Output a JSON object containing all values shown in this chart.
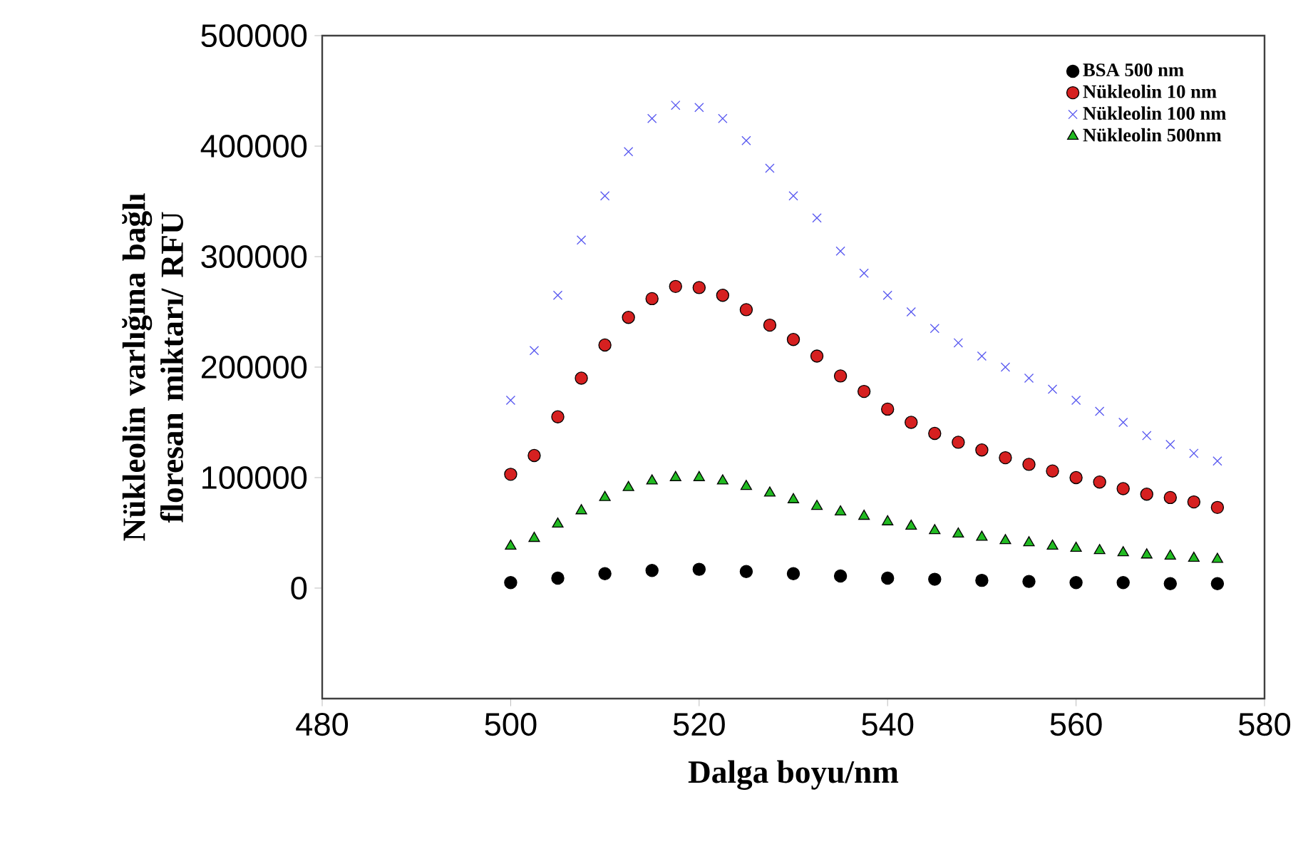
{
  "chart_data": {
    "type": "scatter",
    "xlabel": "Dalga boyu/nm",
    "ylabel": "Nükleolin varlığına bağlı floresan miktarı/ RFU",
    "x": [
      500,
      502.5,
      505,
      507.5,
      510,
      512.5,
      515,
      517.5,
      520,
      522.5,
      525,
      527.5,
      530,
      532.5,
      535,
      537.5,
      540,
      542.5,
      545,
      547.5,
      550,
      552.5,
      555,
      557.5,
      560,
      562.5,
      565,
      567.5,
      570,
      572.5,
      575
    ],
    "series": [
      {
        "name": "BSA 500 nm",
        "color": "#000000",
        "marker": "circle",
        "x": [
          500,
          505,
          510,
          515,
          520,
          525,
          530,
          535,
          540,
          545,
          550,
          555,
          560,
          565,
          570,
          575
        ],
        "values": [
          5000,
          9000,
          13000,
          16000,
          17000,
          15000,
          13000,
          11000,
          9000,
          8000,
          7000,
          6000,
          5000,
          5000,
          4000,
          4000
        ]
      },
      {
        "name": "Nükleolin 10 nm",
        "color": "#d62020",
        "marker": "circle",
        "values": [
          103000,
          120000,
          155000,
          190000,
          220000,
          245000,
          262000,
          273000,
          272000,
          265000,
          252000,
          238000,
          225000,
          210000,
          192000,
          178000,
          162000,
          150000,
          140000,
          132000,
          125000,
          118000,
          112000,
          106000,
          100000,
          96000,
          90000,
          85000,
          82000,
          78000,
          73000
        ]
      },
      {
        "name": "Nükleolin 100 nm",
        "color": "#5a5af0",
        "marker": "cross",
        "values": [
          170000,
          215000,
          265000,
          315000,
          355000,
          395000,
          425000,
          437000,
          435000,
          425000,
          405000,
          380000,
          355000,
          335000,
          305000,
          285000,
          265000,
          250000,
          235000,
          222000,
          210000,
          200000,
          190000,
          180000,
          170000,
          160000,
          150000,
          138000,
          130000,
          122000,
          115000
        ]
      },
      {
        "name": "Nükleolin 500nm",
        "color": "#22bb22",
        "marker": "triangle",
        "values": [
          38000,
          45000,
          58000,
          70000,
          82000,
          91000,
          97000,
          100000,
          100000,
          97000,
          92000,
          86000,
          80000,
          74000,
          69000,
          65000,
          60000,
          56000,
          52000,
          49000,
          46000,
          43000,
          41000,
          38000,
          36000,
          34000,
          32000,
          30000,
          29000,
          27000,
          26000
        ]
      }
    ],
    "xlim": [
      480,
      580
    ],
    "xticks": [
      480,
      500,
      520,
      540,
      560,
      580
    ],
    "ylim": [
      -100000,
      500000
    ],
    "yticks": [
      0,
      100000,
      200000,
      300000,
      400000,
      500000
    ],
    "grid": false,
    "legend": "top right"
  }
}
